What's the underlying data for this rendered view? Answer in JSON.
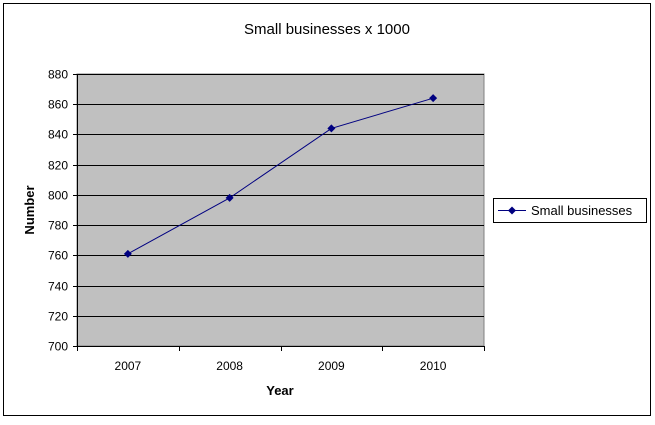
{
  "chart_data": {
    "type": "line",
    "title": "Small businesses x 1000",
    "xlabel": "Year",
    "ylabel": "Number",
    "categories": [
      "2007",
      "2008",
      "2009",
      "2010"
    ],
    "series": [
      {
        "name": "Small businesses",
        "values": [
          761,
          798,
          844,
          864
        ],
        "color": "#000080"
      }
    ],
    "ylim": [
      700,
      880
    ],
    "yticks": [
      700,
      720,
      740,
      760,
      780,
      800,
      820,
      840,
      860,
      880
    ],
    "grid": true,
    "legend": "right",
    "plot_background": "#C0C0C0"
  }
}
